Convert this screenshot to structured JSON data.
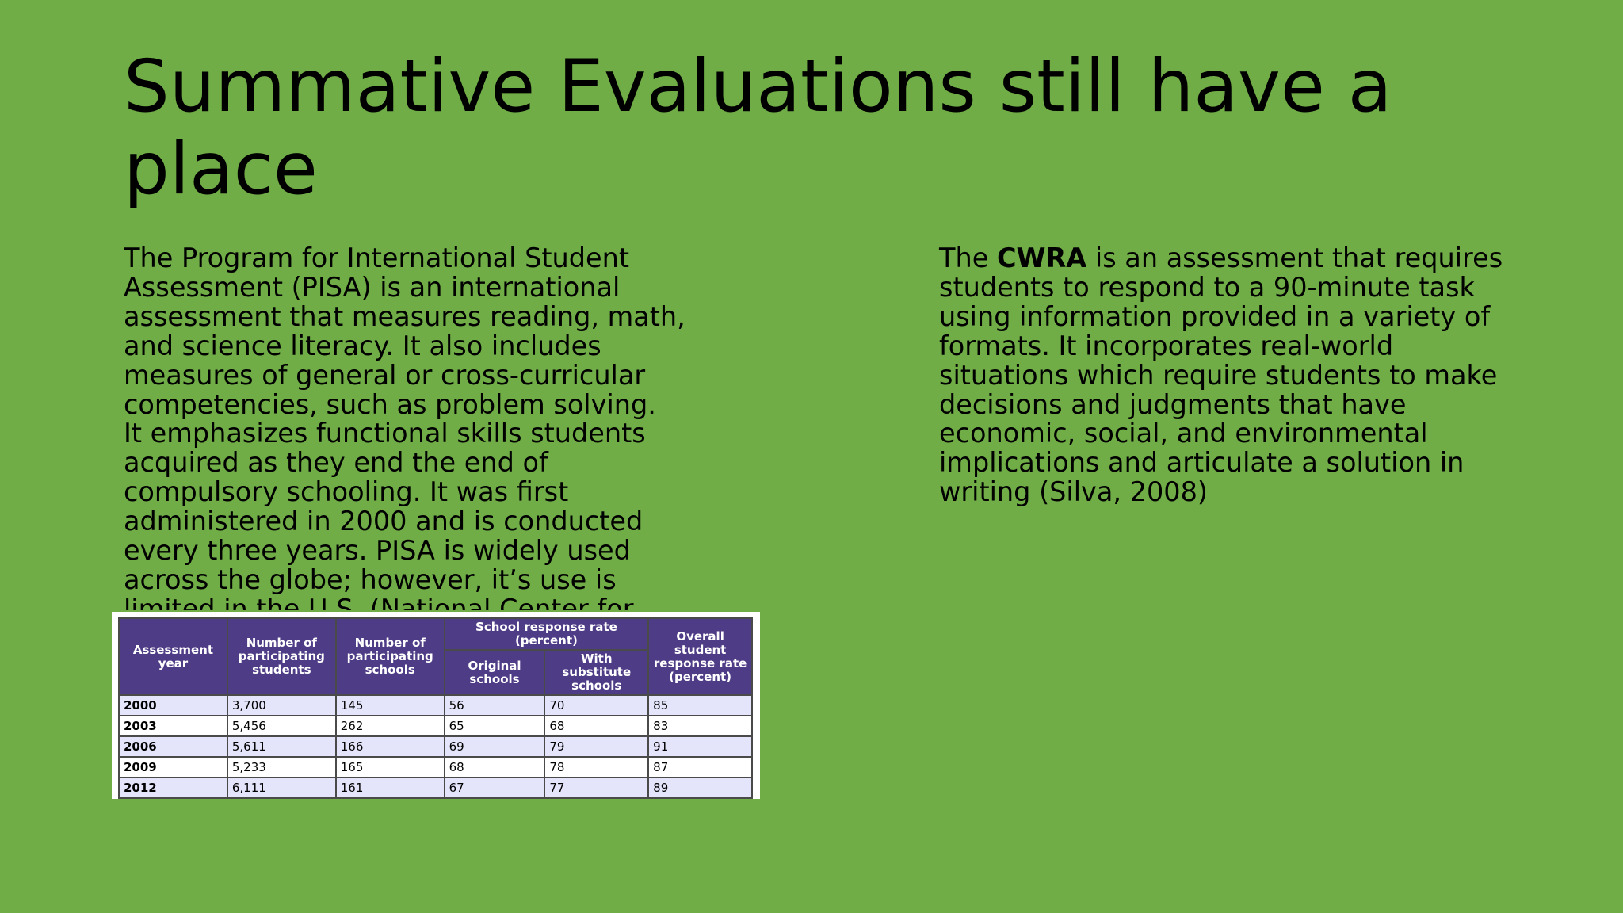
{
  "slide": {
    "title_lines": [
      "Summative Evaluations still have a",
      "place"
    ],
    "left_lines": [
      "The Program for International Student",
      "Assessment (PISA) is an international",
      "assessment that measures reading, math,",
      "and science literacy.  It also includes",
      "measures of general or cross-curricular",
      "competencies, such as problem solving.",
      "It emphasizes functional skills students",
      "acquired as they end the end of",
      "compulsory schooling.  It was first",
      "administered in 2000 and is conducted",
      "every three years.  PISA is widely used",
      "across the globe; however, it’s use is",
      "limited in the U.S.  (National Center for"
    ],
    "right": {
      "first_line_prefix": "The ",
      "first_line_bold": "CWRA",
      "first_line_suffix": " is an assessment that requires",
      "lines": [
        "students to respond to a 90-minute task",
        "using information provided in a variety of",
        "formats.  It incorporates real-world",
        "situations which require students to make",
        "decisions and judgments that have",
        "economic, social, and environmental",
        "implications and articulate a solution in",
        "writing (Silva, 2008)"
      ]
    }
  },
  "table": {
    "headers": {
      "year": "Assessment year",
      "students": "Number of participating students",
      "schools": "Number of participating schools",
      "group": "School response rate (percent)",
      "original": "Original schools",
      "substitute": "With substitute schools",
      "overall": "Overall student response rate (percent)"
    },
    "rows": [
      [
        "2000",
        "3,700",
        "145",
        "56",
        "70",
        "85"
      ],
      [
        "2003",
        "5,456",
        "262",
        "65",
        "68",
        "83"
      ],
      [
        "2006",
        "5,611",
        "166",
        "69",
        "79",
        "91"
      ],
      [
        "2009",
        "5,233",
        "165",
        "68",
        "78",
        "87"
      ],
      [
        "2012",
        "6,111",
        "161",
        "67",
        "77",
        "89"
      ]
    ]
  },
  "colors": {
    "background": "#70ad47",
    "table_header": "#4f3c86",
    "table_row_alt": "#e4e4fb"
  }
}
